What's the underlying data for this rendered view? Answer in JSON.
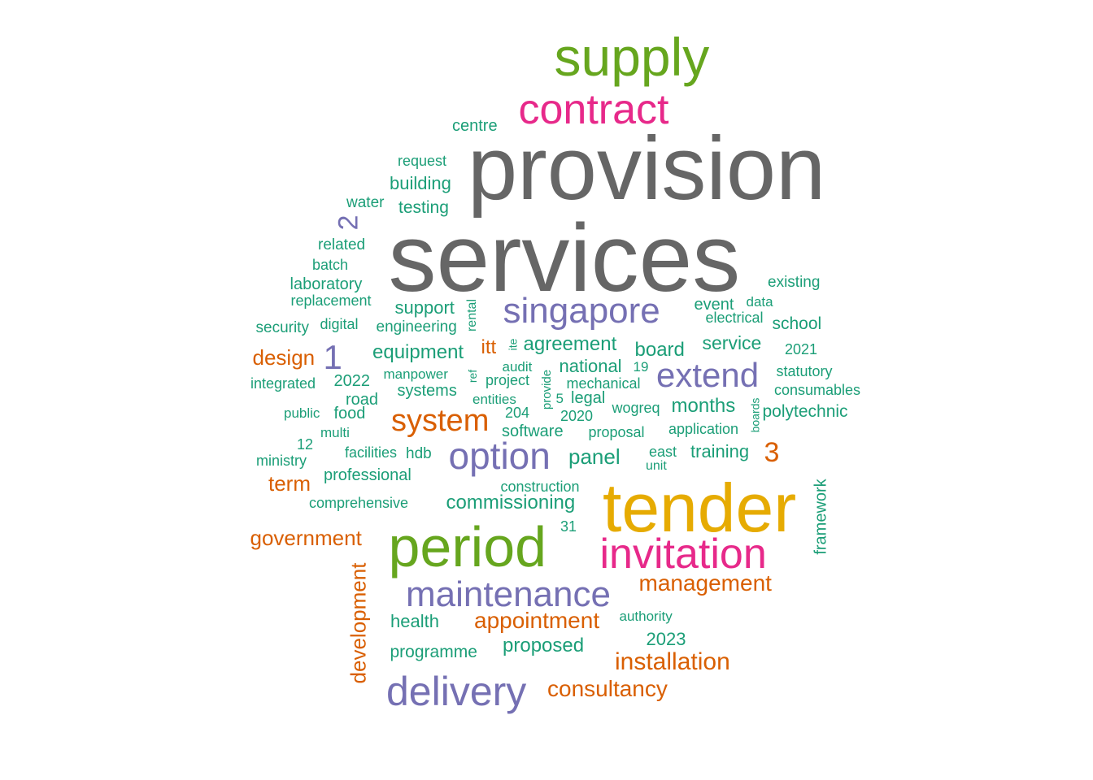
{
  "colors": {
    "grey": "#666666",
    "green": "#66a61e",
    "magenta": "#e7298a",
    "purple": "#7570b3",
    "yellow": "#e6ab02",
    "orange": "#d95f02",
    "teal": "#1b9e77"
  },
  "words": [
    {
      "text": "provision",
      "color": "grey"
    },
    {
      "text": "services",
      "color": "grey"
    },
    {
      "text": "tender",
      "color": "yellow"
    },
    {
      "text": "supply",
      "color": "green"
    },
    {
      "text": "period",
      "color": "green"
    },
    {
      "text": "contract",
      "color": "magenta"
    },
    {
      "text": "invitation",
      "color": "magenta"
    },
    {
      "text": "maintenance",
      "color": "purple"
    },
    {
      "text": "delivery",
      "color": "purple"
    },
    {
      "text": "option",
      "color": "purple"
    },
    {
      "text": "singapore",
      "color": "purple"
    },
    {
      "text": "extend",
      "color": "purple"
    },
    {
      "text": "2",
      "color": "purple"
    },
    {
      "text": "1",
      "color": "purple"
    },
    {
      "text": "system",
      "color": "orange"
    },
    {
      "text": "3",
      "color": "orange"
    },
    {
      "text": "management",
      "color": "orange"
    },
    {
      "text": "appointment",
      "color": "orange"
    },
    {
      "text": "installation",
      "color": "orange"
    },
    {
      "text": "consultancy",
      "color": "orange"
    },
    {
      "text": "government",
      "color": "orange"
    },
    {
      "text": "development",
      "color": "orange"
    },
    {
      "text": "design",
      "color": "orange"
    },
    {
      "text": "term",
      "color": "orange"
    },
    {
      "text": "itt",
      "color": "orange"
    },
    {
      "text": "centre",
      "color": "teal"
    },
    {
      "text": "request",
      "color": "teal"
    },
    {
      "text": "building",
      "color": "teal"
    },
    {
      "text": "water",
      "color": "teal"
    },
    {
      "text": "testing",
      "color": "teal"
    },
    {
      "text": "related",
      "color": "teal"
    },
    {
      "text": "batch",
      "color": "teal"
    },
    {
      "text": "laboratory",
      "color": "teal"
    },
    {
      "text": "replacement",
      "color": "teal"
    },
    {
      "text": "support",
      "color": "teal"
    },
    {
      "text": "rental",
      "color": "teal"
    },
    {
      "text": "security",
      "color": "teal"
    },
    {
      "text": "digital",
      "color": "teal"
    },
    {
      "text": "engineering",
      "color": "teal"
    },
    {
      "text": "existing",
      "color": "teal"
    },
    {
      "text": "event",
      "color": "teal"
    },
    {
      "text": "data",
      "color": "teal"
    },
    {
      "text": "electrical",
      "color": "teal"
    },
    {
      "text": "school",
      "color": "teal"
    },
    {
      "text": "agreement",
      "color": "teal"
    },
    {
      "text": "ite",
      "color": "teal"
    },
    {
      "text": "equipment",
      "color": "teal"
    },
    {
      "text": "board",
      "color": "teal"
    },
    {
      "text": "service",
      "color": "teal"
    },
    {
      "text": "2021",
      "color": "teal"
    },
    {
      "text": "audit",
      "color": "teal"
    },
    {
      "text": "national",
      "color": "teal"
    },
    {
      "text": "statutory",
      "color": "teal"
    },
    {
      "text": "integrated",
      "color": "teal"
    },
    {
      "text": "2022",
      "color": "teal"
    },
    {
      "text": "manpower",
      "color": "teal"
    },
    {
      "text": "ref",
      "color": "teal"
    },
    {
      "text": "project",
      "color": "teal"
    },
    {
      "text": "provide",
      "color": "teal"
    },
    {
      "text": "mechanical",
      "color": "teal"
    },
    {
      "text": "19",
      "color": "teal"
    },
    {
      "text": "consumables",
      "color": "teal"
    },
    {
      "text": "systems",
      "color": "teal"
    },
    {
      "text": "road",
      "color": "teal"
    },
    {
      "text": "entities",
      "color": "teal"
    },
    {
      "text": "5",
      "color": "teal"
    },
    {
      "text": "legal",
      "color": "teal"
    },
    {
      "text": "wogreq",
      "color": "teal"
    },
    {
      "text": "months",
      "color": "teal"
    },
    {
      "text": "boards",
      "color": "teal"
    },
    {
      "text": "polytechnic",
      "color": "teal"
    },
    {
      "text": "public",
      "color": "teal"
    },
    {
      "text": "food",
      "color": "teal"
    },
    {
      "text": "204",
      "color": "teal"
    },
    {
      "text": "2020",
      "color": "teal"
    },
    {
      "text": "multi",
      "color": "teal"
    },
    {
      "text": "software",
      "color": "teal"
    },
    {
      "text": "proposal",
      "color": "teal"
    },
    {
      "text": "application",
      "color": "teal"
    },
    {
      "text": "12",
      "color": "teal"
    },
    {
      "text": "facilities",
      "color": "teal"
    },
    {
      "text": "hdb",
      "color": "teal"
    },
    {
      "text": "panel",
      "color": "teal"
    },
    {
      "text": "east",
      "color": "teal"
    },
    {
      "text": "training",
      "color": "teal"
    },
    {
      "text": "ministry",
      "color": "teal"
    },
    {
      "text": "unit",
      "color": "teal"
    },
    {
      "text": "professional",
      "color": "teal"
    },
    {
      "text": "framework",
      "color": "teal"
    },
    {
      "text": "construction",
      "color": "teal"
    },
    {
      "text": "comprehensive",
      "color": "teal"
    },
    {
      "text": "commissioning",
      "color": "teal"
    },
    {
      "text": "31",
      "color": "teal"
    },
    {
      "text": "authority",
      "color": "teal"
    },
    {
      "text": "health",
      "color": "teal"
    },
    {
      "text": "2023",
      "color": "teal"
    },
    {
      "text": "programme",
      "color": "teal"
    },
    {
      "text": "proposed",
      "color": "teal"
    }
  ]
}
